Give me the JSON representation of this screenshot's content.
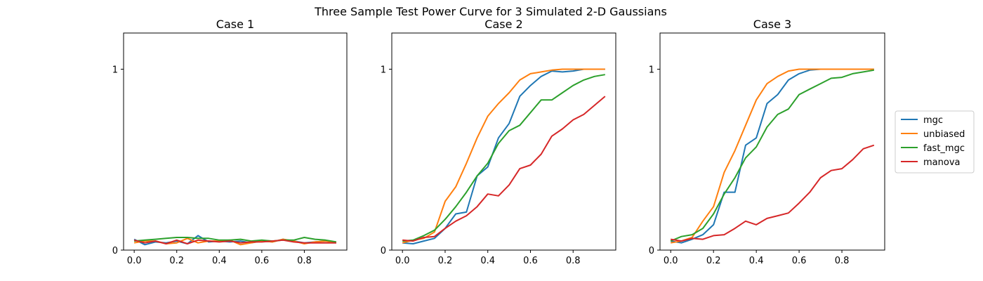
{
  "figure_title": "Three Sample Test Power Curve for 3 Simulated 2-D Gaussians",
  "colors": {
    "mgc": "#1f77b4",
    "unbiased": "#ff7f0e",
    "fast_mgc": "#2ca02c",
    "manova": "#d62728"
  },
  "legend": [
    "mgc",
    "unbiased",
    "fast_mgc",
    "manova"
  ],
  "chart_data": [
    {
      "type": "line",
      "title": "Case 1",
      "x": [
        0,
        0.05,
        0.1,
        0.15,
        0.2,
        0.25,
        0.3,
        0.35,
        0.4,
        0.45,
        0.5,
        0.55,
        0.6,
        0.65,
        0.7,
        0.75,
        0.8,
        0.85,
        0.9,
        0.95
      ],
      "xlim": [
        -0.05,
        1.0
      ],
      "ylim": [
        0,
        1.2
      ],
      "xticks": [
        0.0,
        0.2,
        0.4,
        0.6,
        0.8
      ],
      "xticklabels": [
        "0.0",
        "0.2",
        "0.4",
        "0.6",
        "0.8"
      ],
      "yticks": [
        0,
        1
      ],
      "yticklabels": [
        "0",
        "1"
      ],
      "series": [
        {
          "name": "mgc",
          "values": [
            0.06,
            0.03,
            0.045,
            0.04,
            0.05,
            0.035,
            0.08,
            0.045,
            0.05,
            0.045,
            0.05,
            0.04,
            0.05,
            0.045,
            0.06,
            0.05,
            0.04,
            0.045,
            0.05,
            0.04
          ]
        },
        {
          "name": "unbiased",
          "values": [
            0.04,
            0.05,
            0.05,
            0.035,
            0.04,
            0.065,
            0.04,
            0.05,
            0.05,
            0.055,
            0.03,
            0.04,
            0.05,
            0.045,
            0.06,
            0.05,
            0.035,
            0.045,
            0.05,
            0.04
          ]
        },
        {
          "name": "fast_mgc",
          "values": [
            0.05,
            0.055,
            0.06,
            0.065,
            0.07,
            0.07,
            0.065,
            0.065,
            0.055,
            0.055,
            0.06,
            0.05,
            0.055,
            0.05,
            0.055,
            0.055,
            0.07,
            0.06,
            0.055,
            0.045
          ]
        },
        {
          "name": "manova",
          "values": [
            0.055,
            0.04,
            0.05,
            0.035,
            0.055,
            0.035,
            0.055,
            0.05,
            0.045,
            0.05,
            0.04,
            0.045,
            0.045,
            0.05,
            0.055,
            0.045,
            0.04,
            0.04,
            0.04,
            0.04
          ]
        }
      ]
    },
    {
      "type": "line",
      "title": "Case 2",
      "x": [
        0,
        0.05,
        0.1,
        0.15,
        0.2,
        0.25,
        0.3,
        0.35,
        0.4,
        0.45,
        0.5,
        0.55,
        0.6,
        0.65,
        0.7,
        0.75,
        0.8,
        0.85,
        0.9,
        0.95
      ],
      "xlim": [
        -0.05,
        1.0
      ],
      "ylim": [
        0,
        1.2
      ],
      "xticks": [
        0.0,
        0.2,
        0.4,
        0.6,
        0.8
      ],
      "xticklabels": [
        "0.0",
        "0.2",
        "0.4",
        "0.6",
        "0.8"
      ],
      "yticks": [
        0,
        1
      ],
      "yticklabels": [
        "0",
        "1"
      ],
      "series": [
        {
          "name": "mgc",
          "values": [
            0.04,
            0.035,
            0.05,
            0.065,
            0.12,
            0.2,
            0.21,
            0.41,
            0.46,
            0.62,
            0.7,
            0.85,
            0.91,
            0.96,
            0.99,
            0.985,
            0.99,
            1.0,
            1.0,
            1.0
          ]
        },
        {
          "name": "unbiased",
          "values": [
            0.04,
            0.055,
            0.065,
            0.1,
            0.27,
            0.35,
            0.48,
            0.62,
            0.74,
            0.81,
            0.87,
            0.94,
            0.975,
            0.985,
            0.995,
            1.0,
            1.0,
            1.0,
            1.0,
            1.0
          ]
        },
        {
          "name": "fast_mgc",
          "values": [
            0.05,
            0.055,
            0.08,
            0.11,
            0.17,
            0.24,
            0.32,
            0.41,
            0.48,
            0.59,
            0.66,
            0.69,
            0.76,
            0.83,
            0.83,
            0.87,
            0.91,
            0.94,
            0.96,
            0.97
          ]
        },
        {
          "name": "manova",
          "values": [
            0.055,
            0.05,
            0.07,
            0.075,
            0.12,
            0.16,
            0.19,
            0.24,
            0.31,
            0.3,
            0.36,
            0.45,
            0.47,
            0.53,
            0.63,
            0.67,
            0.72,
            0.75,
            0.8,
            0.85
          ]
        }
      ]
    },
    {
      "type": "line",
      "title": "Case 3",
      "x": [
        0,
        0.05,
        0.1,
        0.15,
        0.2,
        0.25,
        0.3,
        0.35,
        0.4,
        0.45,
        0.5,
        0.55,
        0.6,
        0.65,
        0.7,
        0.75,
        0.8,
        0.85,
        0.9,
        0.95
      ],
      "xlim": [
        -0.05,
        1.0
      ],
      "ylim": [
        0,
        1.2
      ],
      "xticks": [
        0.0,
        0.2,
        0.4,
        0.6,
        0.8
      ],
      "xticklabels": [
        "0.0",
        "0.2",
        "0.4",
        "0.6",
        "0.8"
      ],
      "yticks": [
        0,
        1
      ],
      "yticklabels": [
        "0",
        "1"
      ],
      "series": [
        {
          "name": "mgc",
          "values": [
            0.05,
            0.04,
            0.06,
            0.085,
            0.14,
            0.32,
            0.32,
            0.58,
            0.62,
            0.81,
            0.86,
            0.94,
            0.975,
            0.995,
            1.0,
            1.0,
            1.0,
            1.0,
            1.0,
            1.0
          ]
        },
        {
          "name": "unbiased",
          "values": [
            0.04,
            0.05,
            0.07,
            0.16,
            0.24,
            0.43,
            0.55,
            0.69,
            0.83,
            0.92,
            0.96,
            0.99,
            1.0,
            1.0,
            1.0,
            1.0,
            1.0,
            1.0,
            1.0,
            1.0
          ]
        },
        {
          "name": "fast_mgc",
          "values": [
            0.05,
            0.075,
            0.085,
            0.12,
            0.2,
            0.31,
            0.4,
            0.51,
            0.57,
            0.68,
            0.75,
            0.78,
            0.86,
            0.89,
            0.92,
            0.95,
            0.955,
            0.975,
            0.985,
            0.995
          ]
        },
        {
          "name": "manova",
          "values": [
            0.06,
            0.05,
            0.065,
            0.06,
            0.08,
            0.085,
            0.12,
            0.16,
            0.14,
            0.175,
            0.19,
            0.205,
            0.26,
            0.32,
            0.4,
            0.44,
            0.45,
            0.5,
            0.56,
            0.58
          ]
        }
      ]
    }
  ]
}
